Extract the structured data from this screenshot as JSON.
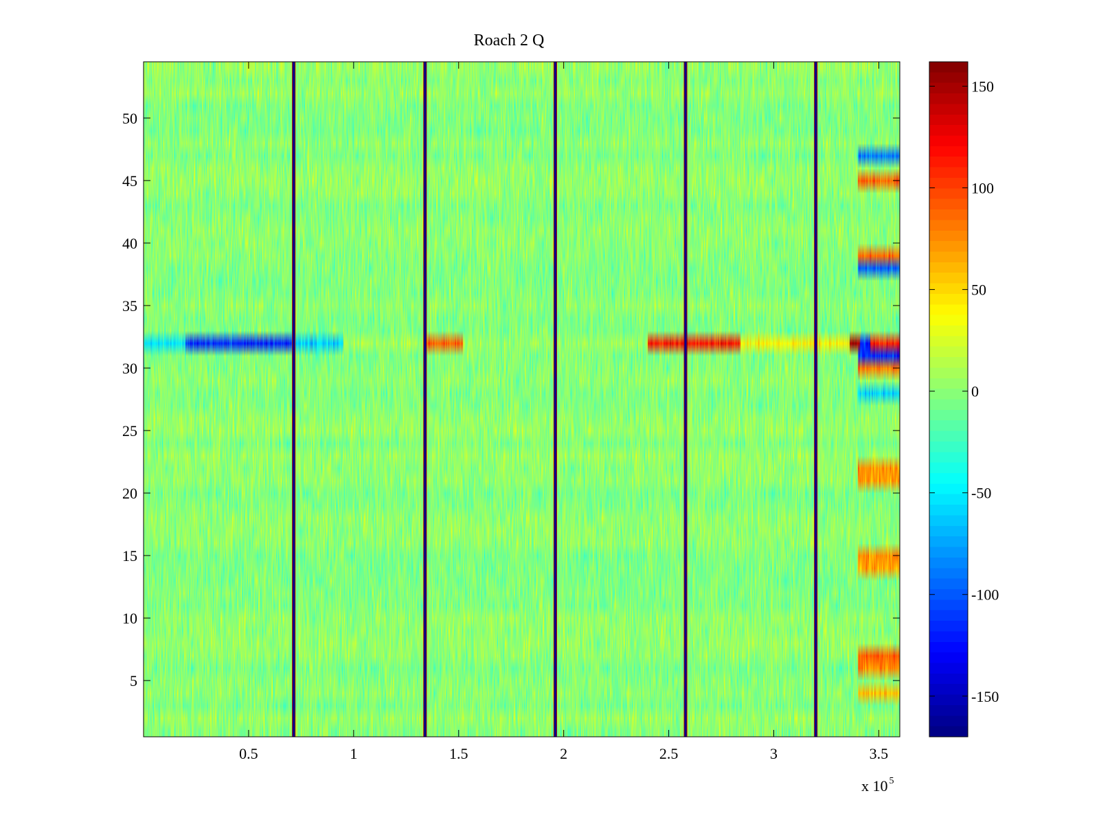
{
  "chart_data": {
    "type": "heatmap",
    "title": "Roach 2 Q",
    "xlabel": "",
    "ylabel": "",
    "x_range": [
      0,
      360000
    ],
    "y_range": [
      0.5,
      54.5
    ],
    "rows": 54,
    "x_ticks": [
      {
        "value": 50000,
        "label": "0.5"
      },
      {
        "value": 100000,
        "label": "1"
      },
      {
        "value": 150000,
        "label": "1.5"
      },
      {
        "value": 200000,
        "label": "2"
      },
      {
        "value": 250000,
        "label": "2.5"
      },
      {
        "value": 300000,
        "label": "3"
      },
      {
        "value": 350000,
        "label": "3.5"
      }
    ],
    "x_exponent": {
      "base": "x 10",
      "power": "5"
    },
    "y_ticks": [
      {
        "value": 5,
        "label": "5"
      },
      {
        "value": 10,
        "label": "10"
      },
      {
        "value": 15,
        "label": "15"
      },
      {
        "value": 20,
        "label": "20"
      },
      {
        "value": 25,
        "label": "25"
      },
      {
        "value": 30,
        "label": "30"
      },
      {
        "value": 35,
        "label": "35"
      },
      {
        "value": 40,
        "label": "40"
      },
      {
        "value": 45,
        "label": "45"
      },
      {
        "value": 50,
        "label": "50"
      }
    ],
    "colorbar": {
      "colormap": "jet",
      "range": [
        -170,
        162
      ],
      "ticks": [
        {
          "value": 150,
          "label": "150"
        },
        {
          "value": 100,
          "label": "100"
        },
        {
          "value": 50,
          "label": "50"
        },
        {
          "value": 0,
          "label": "0"
        },
        {
          "value": -50,
          "label": "-50"
        },
        {
          "value": -100,
          "label": "-100"
        },
        {
          "value": -150,
          "label": "-150"
        }
      ]
    },
    "background_mean": 0,
    "background_noise": 22,
    "vertical_stripes": [
      {
        "x": 71500,
        "value": -165,
        "edge_value": 150
      },
      {
        "x": 134000,
        "value": -165,
        "edge_value": 150
      },
      {
        "x": 196000,
        "value": -165,
        "edge_value": 150
      },
      {
        "x": 258000,
        "value": -165,
        "edge_value": 150
      },
      {
        "x": 320000,
        "value": -165,
        "edge_value": 150
      }
    ],
    "row_segments": [
      {
        "row": 32,
        "x_start": 20000,
        "x_end": 72000,
        "value": -115
      },
      {
        "row": 32,
        "x_start": 0,
        "x_end": 20000,
        "value": -55
      },
      {
        "row": 32,
        "x_start": 72000,
        "x_end": 95000,
        "value": -60
      },
      {
        "row": 32,
        "x_start": 95000,
        "x_end": 134000,
        "value": 10
      },
      {
        "row": 32,
        "x_start": 134000,
        "x_end": 152000,
        "value": 90
      },
      {
        "row": 32,
        "x_start": 152000,
        "x_end": 196000,
        "value": 5
      },
      {
        "row": 32,
        "x_start": 196000,
        "x_end": 240000,
        "value": 5
      },
      {
        "row": 32,
        "x_start": 240000,
        "x_end": 284000,
        "value": 115
      },
      {
        "row": 32,
        "x_start": 284000,
        "x_end": 336000,
        "value": 40
      },
      {
        "row": 32,
        "x_start": 336000,
        "x_end": 341000,
        "value": 150
      },
      {
        "row": 32,
        "x_start": 341000,
        "x_end": 346000,
        "value": -120
      },
      {
        "row": 32,
        "x_start": 346000,
        "x_end": 360000,
        "value": 110
      },
      {
        "row": 31,
        "x_start": 340000,
        "x_end": 360000,
        "value": -110
      },
      {
        "row": 30,
        "x_start": 340000,
        "x_end": 360000,
        "value": 80
      },
      {
        "row": 47,
        "x_start": 340000,
        "x_end": 360000,
        "value": -90
      },
      {
        "row": 45,
        "x_start": 340000,
        "x_end": 360000,
        "value": 90
      },
      {
        "row": 39,
        "x_start": 340000,
        "x_end": 360000,
        "value": 85
      },
      {
        "row": 38,
        "x_start": 340000,
        "x_end": 360000,
        "value": -95
      },
      {
        "row": 28,
        "x_start": 340000,
        "x_end": 360000,
        "value": -60
      },
      {
        "row": 22,
        "x_start": 340000,
        "x_end": 360000,
        "value": 75
      },
      {
        "row": 21,
        "x_start": 340000,
        "x_end": 360000,
        "value": 70
      },
      {
        "row": 15,
        "x_start": 340000,
        "x_end": 360000,
        "value": 75
      },
      {
        "row": 14,
        "x_start": 340000,
        "x_end": 360000,
        "value": 65
      },
      {
        "row": 7,
        "x_start": 340000,
        "x_end": 360000,
        "value": 90
      },
      {
        "row": 6,
        "x_start": 340000,
        "x_end": 360000,
        "value": 75
      },
      {
        "row": 4,
        "x_start": 340000,
        "x_end": 360000,
        "value": 60
      }
    ]
  }
}
